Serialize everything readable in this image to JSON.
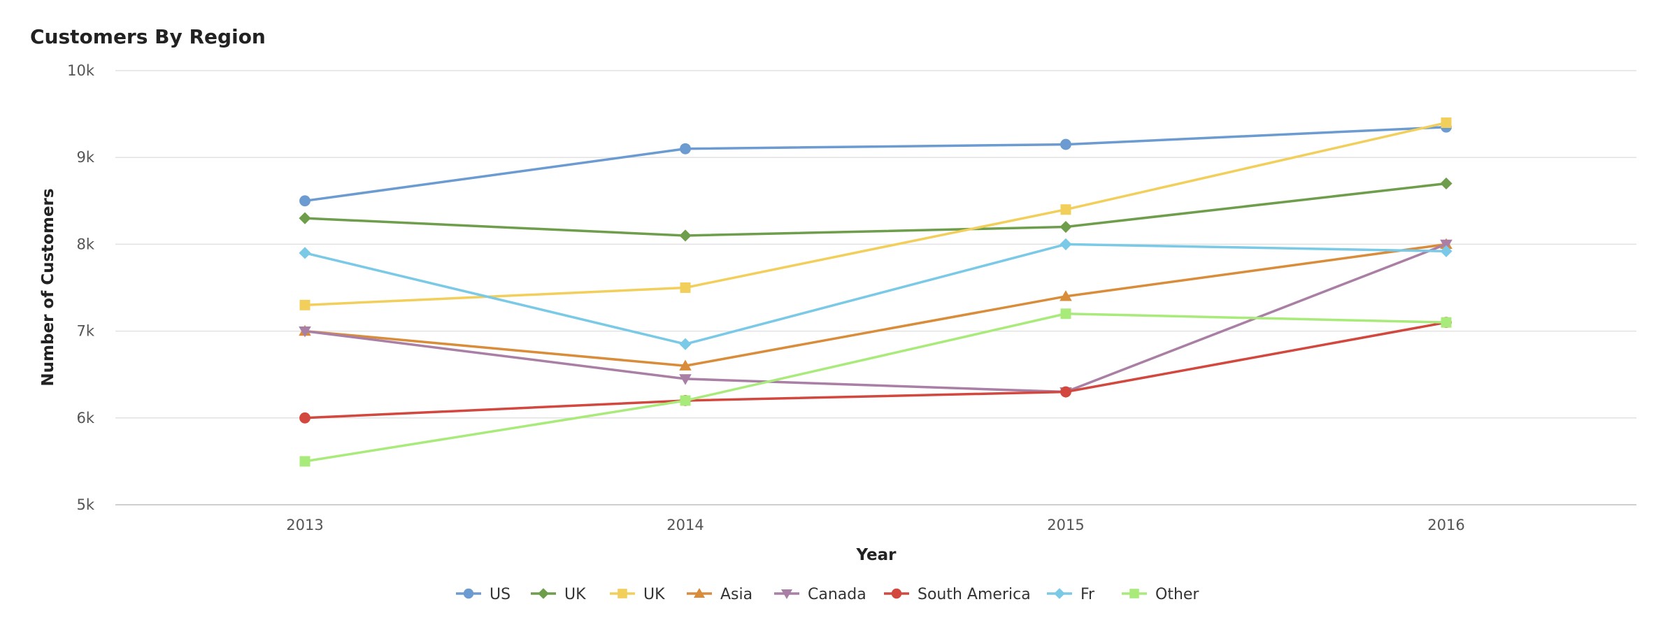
{
  "chart_data": {
    "type": "line",
    "title": "Customers By Region",
    "xlabel": "Year",
    "ylabel": "Number of Customers",
    "categories": [
      "2013",
      "2014",
      "2015",
      "2016"
    ],
    "ylim": [
      5000,
      10000
    ],
    "yticks": [
      5000,
      6000,
      7000,
      8000,
      9000,
      10000
    ],
    "ytick_labels": [
      "5k",
      "6k",
      "7k",
      "8k",
      "9k",
      "10k"
    ],
    "grid": true,
    "legend_position": "bottom",
    "series": [
      {
        "name": "US",
        "color": "#6b9bd1",
        "marker": "circle",
        "values": [
          8500,
          9100,
          9150,
          9350
        ]
      },
      {
        "name": "UK",
        "color": "#6e9e4c",
        "marker": "diamond",
        "values": [
          8300,
          8100,
          8200,
          8700
        ]
      },
      {
        "name": "UK",
        "color": "#f2cf5b",
        "marker": "square",
        "values": [
          7300,
          7500,
          8400,
          9400
        ]
      },
      {
        "name": "Asia",
        "color": "#d98c3a",
        "marker": "triangle-up",
        "values": [
          7000,
          6600,
          7400,
          8000
        ]
      },
      {
        "name": "Canada",
        "color": "#a97fa5",
        "marker": "triangle-down",
        "values": [
          7000,
          6450,
          6300,
          8000
        ]
      },
      {
        "name": "South America",
        "color": "#d2483f",
        "marker": "circle",
        "values": [
          6000,
          6200,
          6300,
          7100
        ]
      },
      {
        "name": "Fr",
        "color": "#7ac9e6",
        "marker": "diamond",
        "values": [
          7900,
          6850,
          8000,
          7920
        ]
      },
      {
        "name": "Other",
        "color": "#a9eb7a",
        "marker": "square",
        "values": [
          5500,
          6200,
          7200,
          7100
        ]
      }
    ]
  }
}
